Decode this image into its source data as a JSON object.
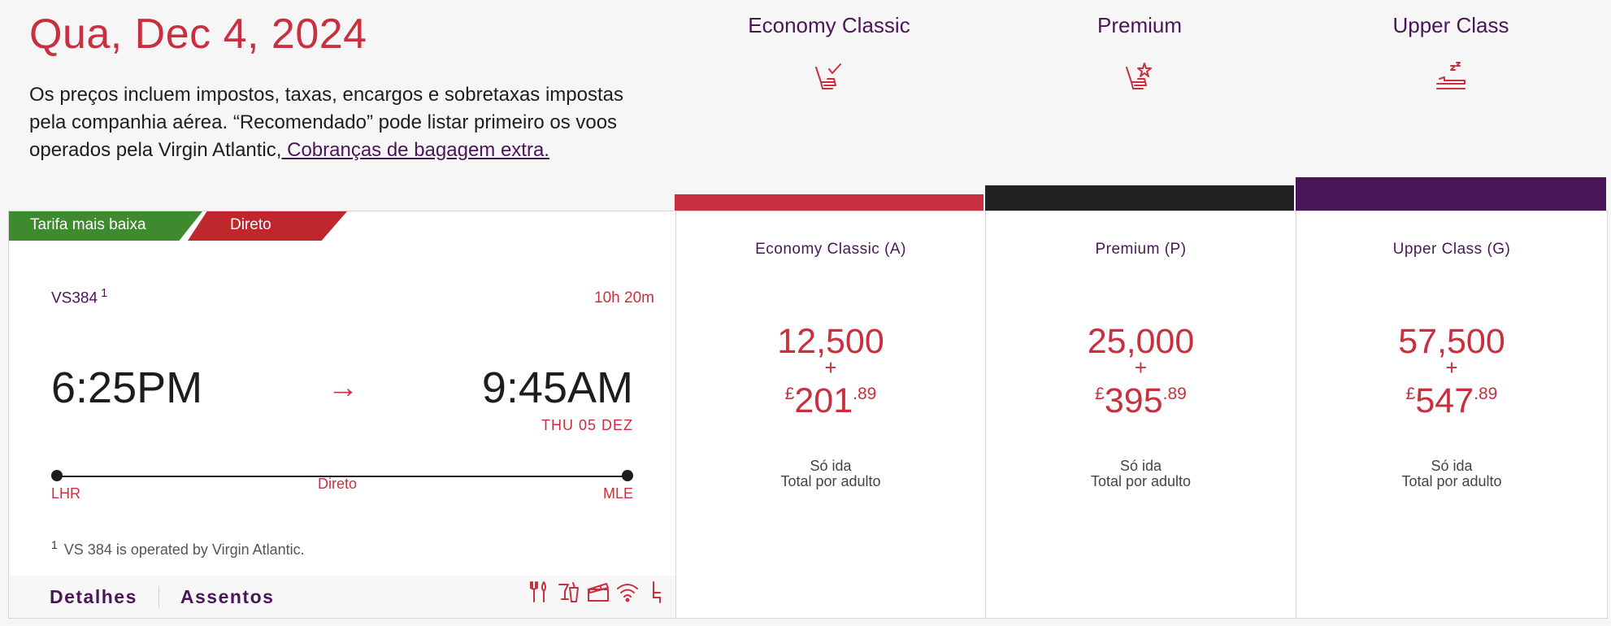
{
  "header": {
    "date": "Qua, Dec 4, 2024",
    "disclaimer": "Os preços incluem impostos, taxas, encargos e sobretaxas impostas pela companhia aérea. “Recomendado” pode listar primeiro os voos operados pela Virgin Atlantic,",
    "baggage_link": " Cobranças de bagagem extra."
  },
  "cabins": [
    {
      "name": "Economy Classic",
      "icon": "seat-check-icon",
      "color": "#c8303f"
    },
    {
      "name": "Premium",
      "icon": "seat-star-icon",
      "color": "#222222"
    },
    {
      "name": "Upper Class",
      "icon": "flatbed-sleep-icon",
      "color": "#4b1659"
    }
  ],
  "flight": {
    "tags": [
      "Tarifa mais baixa",
      "Direto"
    ],
    "number": "VS384",
    "footnote_marker": "1",
    "duration": "10h 20m",
    "departure_time": "6:25PM",
    "arrival_time": "9:45AM",
    "arrival_date": "THU 05 DEZ",
    "origin": "LHR",
    "destination": "MLE",
    "stops_label": "Direto",
    "footnote": "VS 384 is operated by Virgin Atlantic.",
    "details_label": "Detalhes",
    "seats_label": "Assentos",
    "amenities": [
      "cutlery-icon",
      "drinks-icon",
      "entertainment-icon",
      "wifi-icon",
      "power-icon"
    ]
  },
  "fares": [
    {
      "name": "Economy Classic (A)",
      "points": "12,500",
      "plus": "+",
      "currency": "£",
      "price": "201",
      "decimals": ".89",
      "trip": "Só ida",
      "per": "Total por adulto"
    },
    {
      "name": "Premium (P)",
      "points": "25,000",
      "plus": "+",
      "currency": "£",
      "price": "395",
      "decimals": ".89",
      "trip": "Só ida",
      "per": "Total por adulto"
    },
    {
      "name": "Upper Class (G)",
      "points": "57,500",
      "plus": "+",
      "currency": "£",
      "price": "547",
      "decimals": ".89",
      "trip": "Só ida",
      "per": "Total por adulto"
    }
  ]
}
